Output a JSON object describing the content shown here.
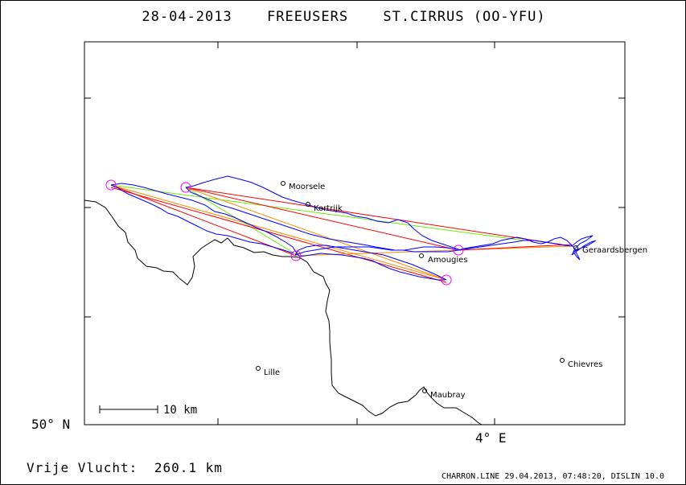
{
  "header": {
    "date": "28-04-2013",
    "club": "FREEUSERS",
    "glider": "ST.CIRRUS (OO-YFU)"
  },
  "map": {
    "lat_label": "50° N",
    "lon_label": "4° E",
    "scale_label": "10 km",
    "cities": [
      {
        "name": "Moorsele"
      },
      {
        "name": "Kortrijk"
      },
      {
        "name": "Amougies"
      },
      {
        "name": "Geraardsbergen"
      },
      {
        "name": "Lille"
      },
      {
        "name": "Chievres"
      },
      {
        "name": "Maubray"
      }
    ],
    "colors": {
      "track": "#0000ff",
      "task_legs": "#ff0000",
      "orange_legs": "#ff8800",
      "declared_leg": "#66ee00",
      "turnpoints": "#ff00ff",
      "border": "#000000"
    }
  },
  "footer": {
    "distance_label": "Vrije Vlucht:",
    "distance_value": "260.1 km",
    "credit": "CHARRON.LINE 29.04.2013, 07:48:20, DISLIN 10.0"
  }
}
